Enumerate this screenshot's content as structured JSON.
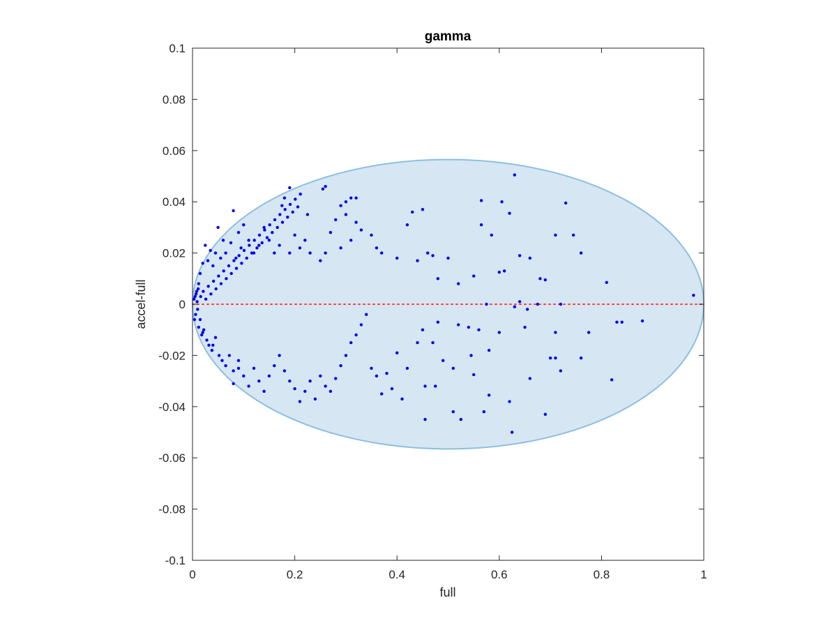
{
  "chart_data": {
    "type": "scatter",
    "title": "gamma",
    "xlabel": "full",
    "ylabel": "accel-full",
    "xlim": [
      0,
      1
    ],
    "ylim": [
      -0.1,
      0.1
    ],
    "x_ticks": [
      0,
      0.2,
      0.4,
      0.6,
      0.8,
      1
    ],
    "x_tick_labels": [
      "0",
      "0.2",
      "0.4",
      "0.6",
      "0.8",
      "1"
    ],
    "y_ticks": [
      -0.1,
      -0.08,
      -0.06,
      -0.04,
      -0.02,
      0,
      0.02,
      0.04,
      0.06,
      0.08,
      0.1
    ],
    "y_tick_labels": [
      "-0.1",
      "-0.08",
      "-0.06",
      "-0.04",
      "-0.02",
      "0",
      "0.02",
      "0.04",
      "0.06",
      "0.08",
      "0.1"
    ],
    "grid": false,
    "reference_line": {
      "y": 0,
      "x_range": [
        0,
        1
      ],
      "style": "dotted",
      "color": "#ff3b3b"
    },
    "ellipse": {
      "center": [
        0.5,
        0
      ],
      "x_radius": 0.5,
      "y_radius": 0.0565,
      "fill": "#d6e6f3",
      "stroke": "#8cbfdf"
    },
    "series": [
      {
        "color": "#0000ee",
        "points": [
          [
            0.63,
            0.0505
          ],
          [
            0.19,
            0.0455
          ],
          [
            0.255,
            0.045
          ],
          [
            0.26,
            0.046
          ],
          [
            0.18,
            0.0415
          ],
          [
            0.31,
            0.0415
          ],
          [
            0.32,
            0.0415
          ],
          [
            0.3,
            0.04
          ],
          [
            0.29,
            0.0385
          ],
          [
            0.43,
            0.036
          ],
          [
            0.45,
            0.037
          ],
          [
            0.565,
            0.0405
          ],
          [
            0.605,
            0.04
          ],
          [
            0.73,
            0.0395
          ],
          [
            0.08,
            0.0365
          ],
          [
            0.62,
            0.0355
          ],
          [
            0.225,
            0.035
          ],
          [
            0.175,
            0.0385
          ],
          [
            0.32,
            0.032
          ],
          [
            0.35,
            0.027
          ],
          [
            0.42,
            0.031
          ],
          [
            0.565,
            0.031
          ],
          [
            0.585,
            0.027
          ],
          [
            0.71,
            0.027
          ],
          [
            0.745,
            0.027
          ],
          [
            0.76,
            0.02
          ],
          [
            0.64,
            0.019
          ],
          [
            0.66,
            0.018
          ],
          [
            0.6,
            0.0125
          ],
          [
            0.61,
            0.013
          ],
          [
            0.55,
            0.011
          ],
          [
            0.81,
            0.0085
          ],
          [
            0.68,
            0.01
          ],
          [
            0.69,
            0.0095
          ],
          [
            0.98,
            0.0035
          ],
          [
            0.575,
            0.0
          ],
          [
            0.675,
            0.0
          ],
          [
            0.72,
            0.0
          ],
          [
            0.63,
            -0.001
          ],
          [
            0.655,
            -0.002
          ],
          [
            0.64,
            0.001
          ],
          [
            0.5,
            0.018
          ],
          [
            0.46,
            0.02
          ],
          [
            0.47,
            0.019
          ],
          [
            0.44,
            0.017
          ],
          [
            0.36,
            0.022
          ],
          [
            0.37,
            0.02
          ],
          [
            0.4,
            0.018
          ],
          [
            0.48,
            0.01
          ],
          [
            0.52,
            0.008
          ],
          [
            0.45,
            -0.01
          ],
          [
            0.48,
            -0.007
          ],
          [
            0.52,
            -0.008
          ],
          [
            0.54,
            -0.009
          ],
          [
            0.56,
            -0.01
          ],
          [
            0.58,
            -0.018
          ],
          [
            0.545,
            -0.02
          ],
          [
            0.51,
            -0.025
          ],
          [
            0.49,
            -0.022
          ],
          [
            0.47,
            -0.015
          ],
          [
            0.55,
            -0.0275
          ],
          [
            0.44,
            -0.015
          ],
          [
            0.42,
            -0.025
          ],
          [
            0.4,
            -0.019
          ],
          [
            0.39,
            -0.033
          ],
          [
            0.38,
            -0.027
          ],
          [
            0.36,
            -0.028
          ],
          [
            0.35,
            -0.025
          ],
          [
            0.37,
            -0.035
          ],
          [
            0.41,
            -0.037
          ],
          [
            0.455,
            -0.032
          ],
          [
            0.475,
            -0.032
          ],
          [
            0.455,
            -0.045
          ],
          [
            0.51,
            -0.042
          ],
          [
            0.525,
            -0.045
          ],
          [
            0.57,
            -0.042
          ],
          [
            0.58,
            -0.0355
          ],
          [
            0.62,
            -0.038
          ],
          [
            0.625,
            -0.05
          ],
          [
            0.69,
            -0.043
          ],
          [
            0.66,
            -0.029
          ],
          [
            0.7,
            -0.021
          ],
          [
            0.71,
            -0.021
          ],
          [
            0.72,
            -0.026
          ],
          [
            0.76,
            -0.021
          ],
          [
            0.775,
            -0.011
          ],
          [
            0.82,
            -0.0295
          ],
          [
            0.83,
            -0.007
          ],
          [
            0.84,
            -0.007
          ],
          [
            0.88,
            -0.0065
          ],
          [
            0.71,
            -0.011
          ],
          [
            0.65,
            -0.009
          ],
          [
            0.6,
            -0.011
          ],
          [
            0.3,
            0.035
          ],
          [
            0.28,
            0.033
          ],
          [
            0.27,
            0.028
          ],
          [
            0.33,
            0.029
          ],
          [
            0.31,
            0.025
          ],
          [
            0.29,
            0.022
          ],
          [
            0.26,
            0.02
          ],
          [
            0.25,
            0.017
          ],
          [
            0.23,
            0.02
          ],
          [
            0.22,
            0.025
          ],
          [
            0.2,
            0.027
          ],
          [
            0.21,
            0.022
          ],
          [
            0.19,
            0.02
          ],
          [
            0.17,
            0.023
          ],
          [
            0.16,
            0.02
          ],
          [
            0.15,
            0.025
          ],
          [
            0.14,
            0.03
          ],
          [
            0.13,
            0.023
          ],
          [
            0.12,
            0.02
          ],
          [
            0.11,
            0.025
          ],
          [
            0.1,
            0.031
          ],
          [
            0.09,
            0.028
          ],
          [
            0.095,
            0.022
          ],
          [
            0.085,
            0.018
          ],
          [
            0.075,
            0.024
          ],
          [
            0.065,
            0.02
          ],
          [
            0.06,
            0.025
          ],
          [
            0.055,
            0.018
          ],
          [
            0.05,
            0.03
          ],
          [
            0.045,
            0.02
          ],
          [
            0.04,
            0.015
          ],
          [
            0.035,
            0.021
          ],
          [
            0.03,
            0.017
          ],
          [
            0.025,
            0.023
          ],
          [
            0.02,
            0.016
          ],
          [
            0.015,
            0.012
          ],
          [
            0.012,
            0.008
          ],
          [
            0.008,
            0.005
          ],
          [
            0.005,
            0.003
          ],
          [
            0.003,
            0.002
          ],
          [
            0.01,
            -0.002
          ],
          [
            0.006,
            -0.004
          ],
          [
            0.004,
            -0.006
          ],
          [
            0.012,
            -0.009
          ],
          [
            0.018,
            -0.012
          ],
          [
            0.022,
            -0.01
          ],
          [
            0.028,
            -0.014
          ],
          [
            0.032,
            -0.016
          ],
          [
            0.038,
            -0.018
          ],
          [
            0.045,
            -0.013
          ],
          [
            0.052,
            -0.02
          ],
          [
            0.058,
            -0.022
          ],
          [
            0.065,
            -0.024
          ],
          [
            0.072,
            -0.02
          ],
          [
            0.08,
            -0.026
          ],
          [
            0.09,
            -0.022
          ],
          [
            0.1,
            -0.028
          ],
          [
            0.11,
            -0.032
          ],
          [
            0.12,
            -0.025
          ],
          [
            0.13,
            -0.03
          ],
          [
            0.14,
            -0.034
          ],
          [
            0.15,
            -0.028
          ],
          [
            0.16,
            -0.024
          ],
          [
            0.17,
            -0.02
          ],
          [
            0.18,
            -0.026
          ],
          [
            0.19,
            -0.03
          ],
          [
            0.2,
            -0.033
          ],
          [
            0.21,
            -0.038
          ],
          [
            0.22,
            -0.034
          ],
          [
            0.23,
            -0.03
          ],
          [
            0.24,
            -0.037
          ],
          [
            0.25,
            -0.028
          ],
          [
            0.26,
            -0.032
          ],
          [
            0.27,
            -0.034
          ],
          [
            0.28,
            -0.029
          ],
          [
            0.29,
            -0.024
          ],
          [
            0.3,
            -0.02
          ],
          [
            0.31,
            -0.015
          ],
          [
            0.32,
            -0.012
          ],
          [
            0.33,
            -0.008
          ],
          [
            0.34,
            -0.004
          ],
          [
            0.08,
            -0.031
          ],
          [
            0.09,
            -0.025
          ],
          [
            0.04,
            -0.016
          ],
          [
            0.02,
            -0.011
          ],
          [
            0.015,
            -0.006
          ],
          [
            0.009,
            0.001
          ],
          [
            0.007,
            0.004
          ],
          [
            0.011,
            0.006
          ],
          [
            0.016,
            0.003
          ],
          [
            0.021,
            0.005
          ],
          [
            0.026,
            0.002
          ],
          [
            0.031,
            0.007
          ],
          [
            0.036,
            0.004
          ],
          [
            0.041,
            0.009
          ],
          [
            0.046,
            0.006
          ],
          [
            0.051,
            0.011
          ],
          [
            0.056,
            0.008
          ],
          [
            0.061,
            0.013
          ],
          [
            0.066,
            0.01
          ],
          [
            0.071,
            0.015
          ],
          [
            0.076,
            0.012
          ],
          [
            0.081,
            0.017
          ],
          [
            0.086,
            0.014
          ],
          [
            0.091,
            0.019
          ],
          [
            0.096,
            0.016
          ],
          [
            0.101,
            0.021
          ],
          [
            0.106,
            0.018
          ],
          [
            0.111,
            0.023
          ],
          [
            0.116,
            0.02
          ],
          [
            0.121,
            0.025
          ],
          [
            0.126,
            0.022
          ],
          [
            0.131,
            0.027
          ],
          [
            0.136,
            0.024
          ],
          [
            0.141,
            0.029
          ],
          [
            0.146,
            0.026
          ],
          [
            0.151,
            0.031
          ],
          [
            0.156,
            0.028
          ],
          [
            0.161,
            0.033
          ],
          [
            0.166,
            0.03
          ],
          [
            0.171,
            0.035
          ],
          [
            0.176,
            0.032
          ],
          [
            0.181,
            0.037
          ],
          [
            0.186,
            0.034
          ],
          [
            0.191,
            0.039
          ],
          [
            0.196,
            0.036
          ],
          [
            0.201,
            0.041
          ],
          [
            0.206,
            0.038
          ],
          [
            0.211,
            0.043
          ]
        ]
      }
    ]
  }
}
